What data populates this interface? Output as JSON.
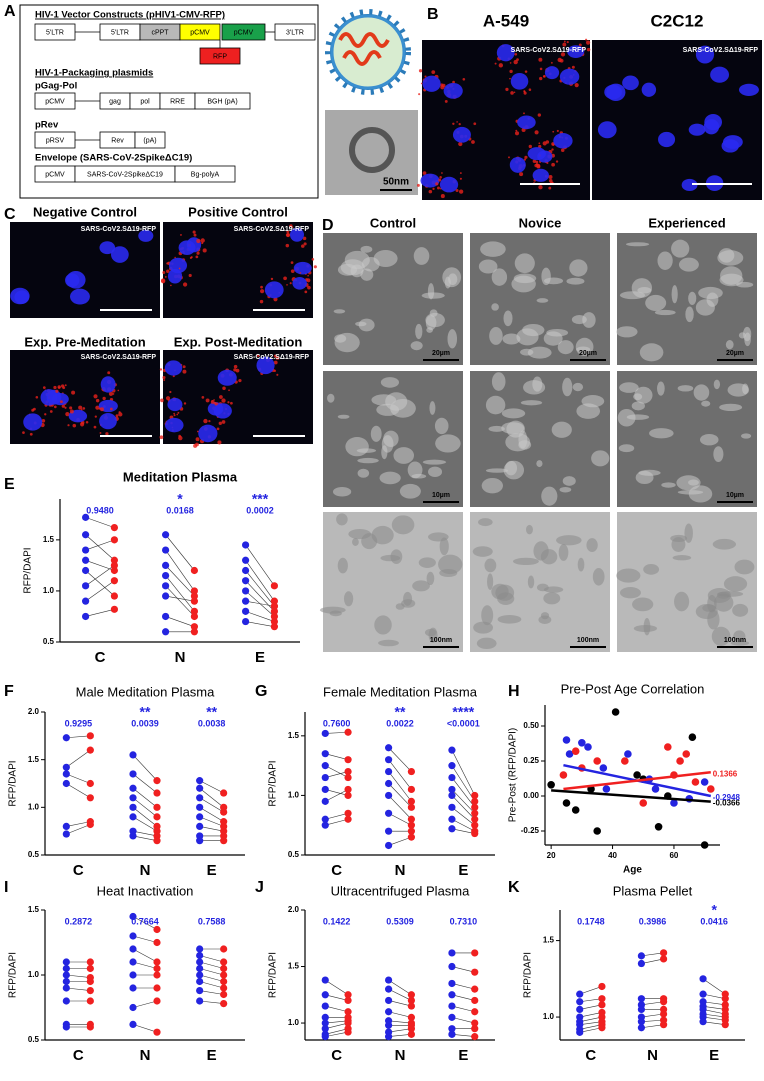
{
  "panel_labels": [
    "A",
    "B",
    "C",
    "D",
    "E",
    "F",
    "G",
    "H",
    "I",
    "J",
    "K"
  ],
  "panel_a": {
    "title": "HIV-1 Vector Constructs (pHIV1-CMV-RFP)",
    "construct": [
      "5'LTR",
      "5'LTR",
      "cPPT",
      "pCMV",
      "pCMV",
      "3'LTR"
    ],
    "rfp": "RFP",
    "packaging_title": "HIV-1-Packaging plasmids",
    "gagpol_title": "pGag-Pol",
    "gagpol": [
      "pCMV",
      "gag",
      "pol",
      "RRE",
      "BGH (pA)"
    ],
    "rev_title": "pRev",
    "rev": [
      "pRSV",
      "Rev",
      "(pA)"
    ],
    "envelope_title": "Envelope (SARS-CoV-2SpikeΔC19)",
    "envelope": [
      "pCMV",
      "SARS-CoV-2SpikeΔC19",
      "Bg-polyA"
    ],
    "em_scale": "50nm"
  },
  "panel_b": {
    "titles": [
      "A-549",
      "C2C12"
    ],
    "captions": [
      "SARS-CoV2.SΔ19-RFP",
      "SARS-CoV2.SΔ19-RFP"
    ]
  },
  "panel_c": {
    "titles": [
      "Negative Control",
      "Positive Control",
      "Exp. Pre-Meditation",
      "Exp. Post-Meditation"
    ],
    "captions": [
      "SARS-CoV2.SΔ19-RFP",
      "SARS-CoV2.SΔ19-RFP",
      "SARS-CoV2.SΔ19-RFP",
      "SARS-CoV2.SΔ19-RFP"
    ]
  },
  "panel_d": {
    "titles": [
      "Control",
      "Novice",
      "Experienced"
    ],
    "scale_bars": [
      "20µm",
      "20µm",
      "20µm",
      "10µm",
      "10µm",
      "100nm",
      "100nm",
      "100nm"
    ]
  },
  "chart_data": [
    {
      "type": "paired-dot",
      "title": "Meditation Plasma",
      "y_label": "RFP/DAPI",
      "categories": [
        "C",
        "N",
        "E"
      ],
      "ylim": [
        0.5,
        1.9
      ],
      "yticks": [
        0.5,
        {
          "value": 1,
          "label": "1.0"
        },
        1.5
      ],
      "pre_color": "#2424e0",
      "post_color": "#f02020",
      "p_color": "#2424e0",
      "groups": [
        {
          "pre": [
            1.72,
            1.55,
            1.4,
            1.3,
            1.2,
            1.05,
            0.9,
            0.75
          ],
          "post": [
            1.62,
            1.3,
            1.5,
            1.2,
            0.95,
            1.25,
            1.1,
            0.82
          ]
        },
        {
          "pre": [
            1.55,
            1.4,
            1.25,
            1.15,
            1.05,
            0.95,
            0.75,
            0.6
          ],
          "post": [
            1.2,
            1.0,
            0.95,
            0.8,
            0.75,
            0.9,
            0.65,
            0.6
          ]
        },
        {
          "pre": [
            1.45,
            1.3,
            1.2,
            1.1,
            1.0,
            0.9,
            0.8,
            0.7
          ],
          "post": [
            1.05,
            0.9,
            0.85,
            0.8,
            0.75,
            0.85,
            0.7,
            0.65
          ]
        }
      ],
      "p_labels": [
        "0.9480",
        "0.0168",
        "0.0002"
      ],
      "stars": [
        null,
        "*",
        "***"
      ]
    },
    {
      "type": "paired-dot",
      "title": "Male Meditation Plasma",
      "y_label": "RFP/DAPI",
      "categories": [
        "C",
        "N",
        "E"
      ],
      "ylim": [
        0.5,
        2.0
      ],
      "yticks": [
        0.5,
        {
          "value": 1,
          "label": "1.0"
        },
        1.5,
        {
          "value": 2,
          "label": "2.0"
        }
      ],
      "pre_color": "#2424e0",
      "post_color": "#f02020",
      "p_color": "#2424e0",
      "groups": [
        {
          "pre": [
            1.73,
            1.42,
            1.35,
            1.25,
            0.8,
            0.72
          ],
          "post": [
            1.75,
            1.6,
            1.25,
            1.1,
            0.85,
            0.82
          ]
        },
        {
          "pre": [
            1.55,
            1.35,
            1.2,
            1.1,
            1.0,
            0.9,
            0.75,
            0.7
          ],
          "post": [
            1.28,
            1.15,
            1.0,
            0.9,
            0.8,
            0.75,
            0.7,
            0.65
          ]
        },
        {
          "pre": [
            1.28,
            1.2,
            1.1,
            1.0,
            0.9,
            0.8,
            0.7,
            0.65
          ],
          "post": [
            1.15,
            1.0,
            0.95,
            0.85,
            0.8,
            0.75,
            0.7,
            0.65
          ]
        }
      ],
      "p_labels": [
        "0.9295",
        "0.0039",
        "0.0038"
      ],
      "stars": [
        null,
        "**",
        "**"
      ]
    },
    {
      "type": "paired-dot",
      "title": "Female Meditation Plasma",
      "y_label": "RFP/DAPI",
      "categories": [
        "C",
        "N",
        "E"
      ],
      "ylim": [
        0.5,
        1.7
      ],
      "yticks": [
        0.5,
        {
          "value": 1,
          "label": "1.0"
        },
        1.5
      ],
      "pre_color": "#2424e0",
      "post_color": "#f02020",
      "p_color": "#2424e0",
      "groups": [
        {
          "pre": [
            1.52,
            1.35,
            1.25,
            1.15,
            1.05,
            0.95,
            0.8,
            0.75
          ],
          "post": [
            1.53,
            1.3,
            1.15,
            1.2,
            1.0,
            1.05,
            0.85,
            0.8
          ]
        },
        {
          "pre": [
            1.4,
            1.3,
            1.2,
            1.1,
            1.0,
            0.85,
            0.7,
            0.58
          ],
          "post": [
            1.2,
            1.05,
            0.95,
            0.9,
            0.8,
            0.75,
            0.7,
            0.65
          ]
        },
        {
          "pre": [
            1.38,
            1.25,
            1.15,
            1.05,
            1.0,
            0.9,
            0.8,
            0.72
          ],
          "post": [
            1.0,
            0.95,
            0.9,
            0.85,
            0.8,
            0.75,
            0.7,
            0.68
          ]
        }
      ],
      "p_labels": [
        "0.7600",
        "0.0022",
        "<0.0001"
      ],
      "stars": [
        null,
        "**",
        "****"
      ]
    },
    {
      "type": "scatter",
      "title": "Pre-Post Age Correlation",
      "x_label": "Age",
      "y_label": "Pre-Post (RFP/DAPI)",
      "xlim": [
        18,
        75
      ],
      "xticks": [
        20,
        40,
        60
      ],
      "ylim": [
        -0.35,
        0.65
      ],
      "yticks": [
        {
          "value": -0.25,
          "label": "-0.25"
        },
        {
          "value": 0,
          "label": "0.00"
        },
        {
          "value": 0.25,
          "label": "0.25"
        },
        {
          "value": 0.5,
          "label": "0.50"
        }
      ],
      "series": [
        {
          "color": "#000000",
          "x": [
            20,
            25,
            28,
            33,
            35,
            41,
            48,
            50,
            55,
            58,
            66,
            70
          ],
          "y": [
            0.08,
            -0.05,
            -0.1,
            0.05,
            -0.25,
            0.6,
            0.15,
            0.12,
            -0.22,
            0.0,
            0.42,
            -0.35
          ],
          "fit": {
            "x": [
              20,
              72
            ],
            "y": [
              0.04,
              -0.04
            ],
            "label": "-0.0366"
          }
        },
        {
          "color": "#2424e0",
          "x": [
            25,
            26,
            30,
            32,
            37,
            38,
            45,
            52,
            54,
            60,
            65,
            70
          ],
          "y": [
            0.4,
            0.3,
            0.38,
            0.35,
            0.2,
            0.05,
            0.3,
            0.12,
            0.05,
            -0.05,
            -0.02,
            0.1
          ],
          "fit": {
            "x": [
              24,
              72
            ],
            "y": [
              0.22,
              0.0
            ],
            "label": "-0.2948"
          }
        },
        {
          "color": "#f02020",
          "x": [
            24,
            28,
            30,
            35,
            44,
            50,
            58,
            60,
            62,
            64,
            67,
            72
          ],
          "y": [
            0.15,
            0.32,
            0.2,
            0.25,
            0.25,
            -0.05,
            0.35,
            0.15,
            0.25,
            0.3,
            0.1,
            0.05
          ],
          "fit": {
            "x": [
              24,
              72
            ],
            "y": [
              0.05,
              0.17
            ],
            "label": "0.1366"
          }
        }
      ]
    },
    {
      "type": "paired-dot",
      "title": "Heat Inactivation",
      "y_label": "RFP/DAPI",
      "categories": [
        "C",
        "N",
        "E"
      ],
      "ylim": [
        0.5,
        1.5
      ],
      "yticks": [
        0.5,
        {
          "value": 1,
          "label": "1.0"
        },
        1.5
      ],
      "pre_color": "#2424e0",
      "post_color": "#f02020",
      "p_color": "#2424e0",
      "groups": [
        {
          "pre": [
            1.1,
            1.05,
            1.0,
            0.95,
            0.9,
            0.8,
            0.62,
            0.6
          ],
          "post": [
            1.1,
            1.05,
            0.98,
            0.95,
            0.88,
            0.8,
            0.62,
            0.6
          ]
        },
        {
          "pre": [
            1.45,
            1.3,
            1.2,
            1.1,
            1.0,
            0.9,
            0.75,
            0.62
          ],
          "post": [
            1.35,
            1.25,
            1.1,
            1.05,
            1.0,
            0.9,
            0.8,
            0.56
          ]
        },
        {
          "pre": [
            1.2,
            1.15,
            1.1,
            1.05,
            1.0,
            0.95,
            0.88,
            0.8
          ],
          "post": [
            1.2,
            1.1,
            1.05,
            1.0,
            0.95,
            0.9,
            0.85,
            0.78
          ]
        }
      ],
      "p_labels": [
        "0.2872",
        "0.7664",
        "0.7588"
      ],
      "stars": [
        null,
        null,
        null
      ]
    },
    {
      "type": "paired-dot",
      "title": "Ultracentrifuged Plasma",
      "y_label": "RFP/DAPI",
      "categories": [
        "C",
        "N",
        "E"
      ],
      "ylim": [
        0.85,
        2.0
      ],
      "yticks": [
        {
          "value": 1,
          "label": "1.0"
        },
        1.5,
        {
          "value": 2,
          "label": "2.0"
        }
      ],
      "pre_color": "#2424e0",
      "post_color": "#f02020",
      "p_color": "#2424e0",
      "groups": [
        {
          "pre": [
            1.38,
            1.25,
            1.15,
            1.05,
            1.0,
            0.95,
            0.9,
            0.88
          ],
          "post": [
            1.25,
            1.2,
            1.1,
            1.05,
            1.02,
            1.0,
            0.95,
            0.92
          ]
        },
        {
          "pre": [
            1.38,
            1.3,
            1.2,
            1.1,
            1.02,
            0.98,
            0.92,
            0.88
          ],
          "post": [
            1.25,
            1.2,
            1.15,
            1.05,
            1.0,
            0.98,
            0.95,
            0.9
          ]
        },
        {
          "pre": [
            1.62,
            1.5,
            1.35,
            1.25,
            1.15,
            1.05,
            0.95,
            0.9
          ],
          "post": [
            1.62,
            1.45,
            1.3,
            1.2,
            1.1,
            1.0,
            0.95,
            0.88
          ]
        }
      ],
      "p_labels": [
        "0.1422",
        "0.5309",
        "0.7310"
      ],
      "stars": [
        null,
        null,
        null
      ]
    },
    {
      "type": "paired-dot",
      "title": "Plasma Pellet",
      "y_label": "RFP/DAPI",
      "categories": [
        "C",
        "N",
        "E"
      ],
      "ylim": [
        0.85,
        1.7
      ],
      "yticks": [
        {
          "value": 1,
          "label": "1.0"
        },
        1.5
      ],
      "pre_color": "#2424e0",
      "post_color": "#f02020",
      "p_color": "#2424e0",
      "groups": [
        {
          "pre": [
            1.15,
            1.1,
            1.05,
            1.0,
            0.97,
            0.95,
            0.92,
            0.9
          ],
          "post": [
            1.2,
            1.12,
            1.08,
            1.03,
            1.0,
            0.97,
            0.95,
            0.93
          ]
        },
        {
          "pre": [
            1.4,
            1.35,
            1.12,
            1.08,
            1.05,
            1.0,
            0.97,
            0.93
          ],
          "post": [
            1.42,
            1.38,
            1.12,
            1.1,
            1.05,
            1.02,
            0.98,
            0.95
          ]
        },
        {
          "pre": [
            1.25,
            1.15,
            1.1,
            1.07,
            1.05,
            1.02,
            1.0,
            0.97
          ],
          "post": [
            1.15,
            1.12,
            1.08,
            1.05,
            1.02,
            1.0,
            0.98,
            0.95
          ]
        }
      ],
      "p_labels": [
        "0.1748",
        "0.3986",
        "0.0416"
      ],
      "stars": [
        null,
        null,
        "*"
      ]
    }
  ]
}
